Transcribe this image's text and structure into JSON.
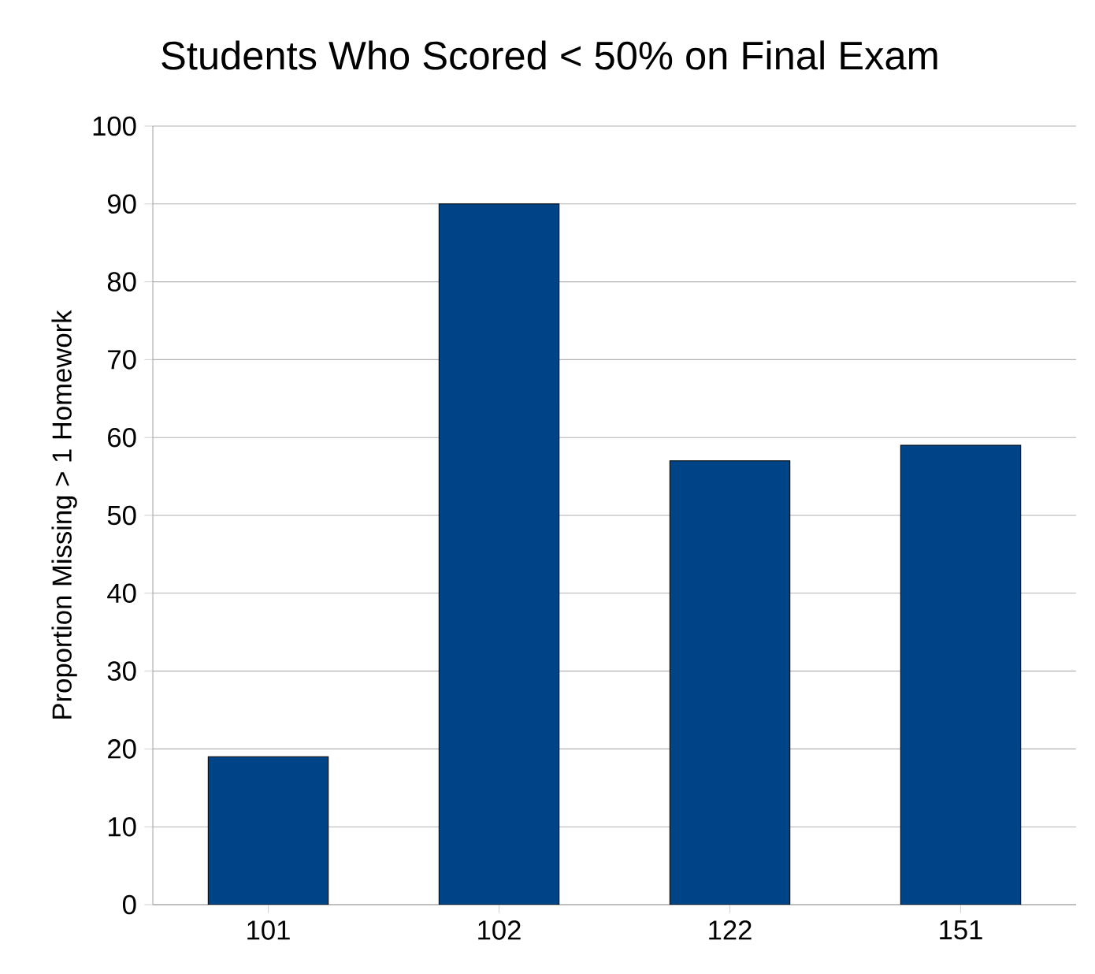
{
  "chart_data": {
    "type": "bar",
    "title": "Students Who Scored < 50% on Final Exam",
    "ylabel": "Proportion Missing > 1 Homework",
    "categories": [
      "101",
      "102",
      "122",
      "151"
    ],
    "values": [
      19,
      90,
      57,
      59
    ],
    "color": "#004488",
    "ylim": [
      0,
      100
    ],
    "yticks": [
      0,
      10,
      20,
      30,
      40,
      50,
      60,
      70,
      80,
      90,
      100
    ],
    "grid": "y"
  }
}
